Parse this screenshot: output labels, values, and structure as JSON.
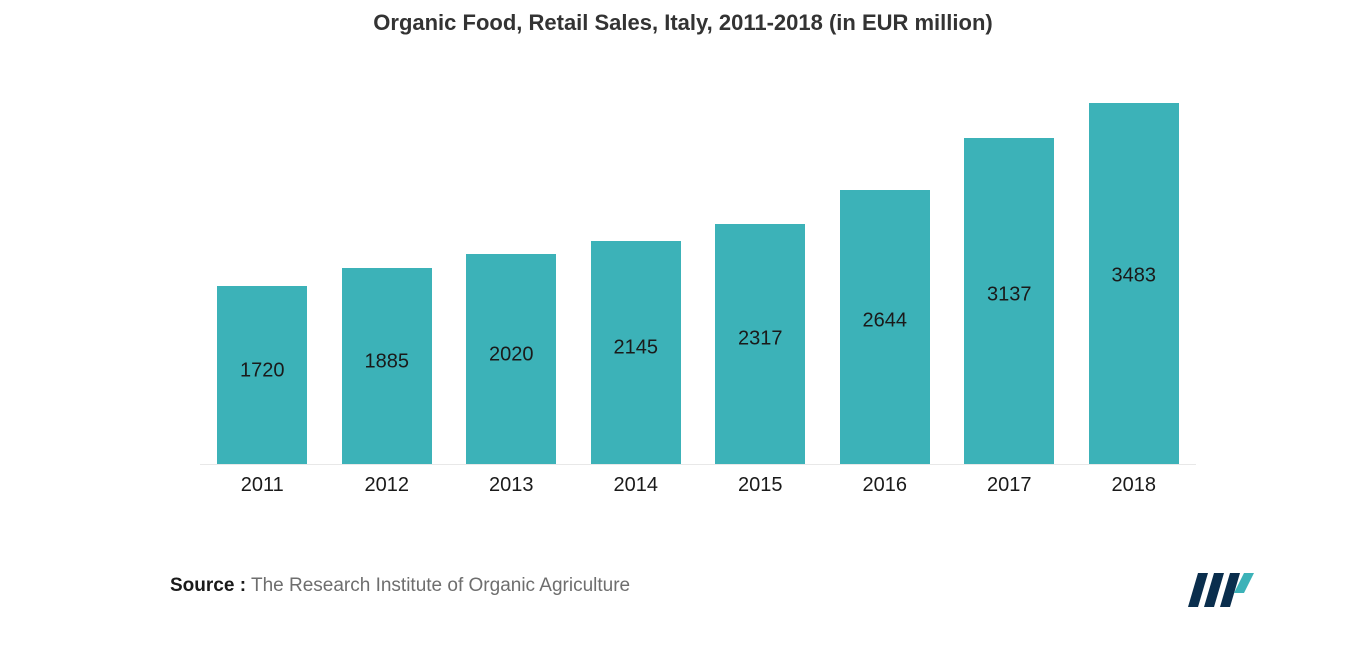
{
  "chart": {
    "type": "bar",
    "title": "Organic Food, Retail Sales, Italy, 2011-2018 (in EUR million)",
    "title_fontsize": 22,
    "title_color": "#333333",
    "categories": [
      "2011",
      "2012",
      "2013",
      "2014",
      "2015",
      "2016",
      "2017",
      "2018"
    ],
    "values": [
      1720,
      1885,
      2020,
      2145,
      2317,
      2644,
      3137,
      3483
    ],
    "ylim_max": 3700,
    "bar_color": "#3cb2b8",
    "value_label_color": "#1a1a1a",
    "value_label_fontsize": 20,
    "x_label_color": "#1a1a1a",
    "x_label_fontsize": 20,
    "background_color": "#ffffff",
    "baseline_color": "#e8e8e8",
    "bar_width_ratio": 0.72
  },
  "source": {
    "label": "Source :",
    "text": "The Research Institute of Organic Agriculture",
    "label_color": "#1a1a1a",
    "text_color": "#6e6e6e",
    "fontsize": 19
  },
  "logo": {
    "name": "mordor-intelligence-logo",
    "bars_color": "#0a2e4d",
    "accent_color": "#3cb2b8"
  }
}
